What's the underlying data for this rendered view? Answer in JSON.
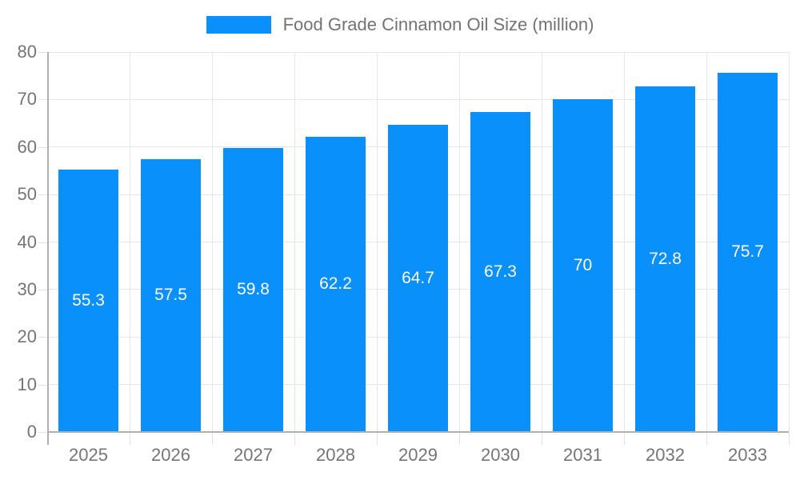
{
  "chart_data": {
    "type": "bar",
    "title": "Food Grade Cinnamon Oil Size (million)",
    "categories": [
      "2025",
      "2026",
      "2027",
      "2028",
      "2029",
      "2030",
      "2031",
      "2032",
      "2033"
    ],
    "values": [
      55.3,
      57.5,
      59.8,
      62.2,
      64.7,
      67.3,
      70,
      72.8,
      75.7
    ],
    "value_labels": [
      "55.3",
      "57.5",
      "59.8",
      "62.2",
      "64.7",
      "67.3",
      "70",
      "72.8",
      "75.7"
    ],
    "xlabel": "",
    "ylabel": "",
    "ylim": [
      0,
      80
    ],
    "ytick_step": 10,
    "ytick_labels": [
      "0",
      "10",
      "20",
      "30",
      "40",
      "50",
      "60",
      "70",
      "80"
    ],
    "grid": true,
    "legend_position": "top",
    "colors": {
      "bar": "#0990fa",
      "value_label": "#ffffff",
      "grid": "#e6e6e6",
      "axis": "#b0b0b0",
      "tick": "#e2e2e2",
      "tick_text": "#757575",
      "legend_text": "#737373",
      "background": "#ffffff"
    }
  }
}
